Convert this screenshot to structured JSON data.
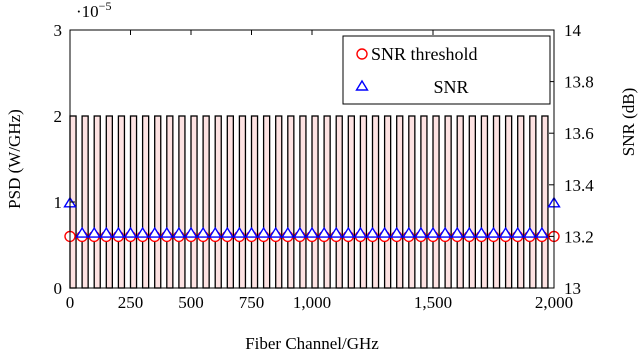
{
  "chart_data": {
    "type": "bar",
    "x_axis": {
      "label": "Fiber Channel/GHz",
      "range": [
        0,
        2000
      ],
      "ticks": [
        0,
        250,
        500,
        750,
        1000,
        1500,
        2000
      ],
      "tick_labels": [
        "0",
        "250",
        "500",
        "750",
        "1,000",
        "1,500",
        "2,000"
      ]
    },
    "y_left": {
      "label": "PSD (W/GHz)",
      "range": [
        0,
        3
      ],
      "ticks": [
        0,
        1,
        2,
        3
      ],
      "tick_labels": [
        "0",
        "1",
        "2",
        "3"
      ],
      "multiplier": "·10",
      "multiplier_exponent": "−5"
    },
    "y_right": {
      "label": "SNR (dB)",
      "range": [
        13,
        14
      ],
      "ticks": [
        13,
        13.2,
        13.4,
        13.6,
        13.8,
        14
      ],
      "tick_labels": [
        "13",
        "13.2",
        "13.4",
        "13.6",
        "13.8",
        "14"
      ]
    },
    "psd_bars": {
      "centers": [
        12.5,
        62.5,
        112.5,
        162.5,
        212.5,
        262.5,
        312.5,
        362.5,
        412.5,
        462.5,
        512.5,
        562.5,
        612.5,
        662.5,
        712.5,
        762.5,
        812.5,
        862.5,
        912.5,
        962.5,
        1012.5,
        1062.5,
        1112.5,
        1162.5,
        1212.5,
        1262.5,
        1312.5,
        1362.5,
        1412.5,
        1462.5,
        1512.5,
        1562.5,
        1612.5,
        1662.5,
        1712.5,
        1762.5,
        1812.5,
        1862.5,
        1912.5,
        1962.5
      ],
      "width": 25,
      "value": 2,
      "fill": "#fde2e2",
      "stroke": "#000000"
    },
    "series": [
      {
        "name": "SNR threshold",
        "marker": "circle",
        "color": "#ff0000",
        "x": [
          0,
          50,
          100,
          150,
          200,
          250,
          300,
          350,
          400,
          450,
          500,
          550,
          600,
          650,
          700,
          750,
          800,
          850,
          900,
          950,
          1000,
          1050,
          1100,
          1150,
          1200,
          1250,
          1300,
          1350,
          1400,
          1450,
          1500,
          1550,
          1600,
          1650,
          1700,
          1750,
          1800,
          1850,
          1900,
          1950,
          2000
        ],
        "values": [
          13.2,
          13.2,
          13.2,
          13.2,
          13.2,
          13.2,
          13.2,
          13.2,
          13.2,
          13.2,
          13.2,
          13.2,
          13.2,
          13.2,
          13.2,
          13.2,
          13.2,
          13.2,
          13.2,
          13.2,
          13.2,
          13.2,
          13.2,
          13.2,
          13.2,
          13.2,
          13.2,
          13.2,
          13.2,
          13.2,
          13.2,
          13.2,
          13.2,
          13.2,
          13.2,
          13.2,
          13.2,
          13.2,
          13.2,
          13.2,
          13.2
        ]
      },
      {
        "name": "SNR",
        "marker": "triangle",
        "color": "#0000ff",
        "x": [
          0,
          50,
          100,
          150,
          200,
          250,
          300,
          350,
          400,
          450,
          500,
          550,
          600,
          650,
          700,
          750,
          800,
          850,
          900,
          950,
          1000,
          1050,
          1100,
          1150,
          1200,
          1250,
          1300,
          1350,
          1400,
          1450,
          1500,
          1550,
          1600,
          1650,
          1700,
          1750,
          1800,
          1850,
          1900,
          1950,
          2000
        ],
        "values": [
          13.33,
          13.213,
          13.213,
          13.213,
          13.213,
          13.213,
          13.213,
          13.213,
          13.213,
          13.213,
          13.213,
          13.213,
          13.213,
          13.213,
          13.213,
          13.213,
          13.213,
          13.213,
          13.213,
          13.213,
          13.213,
          13.213,
          13.213,
          13.213,
          13.213,
          13.213,
          13.213,
          13.213,
          13.213,
          13.213,
          13.213,
          13.213,
          13.213,
          13.213,
          13.213,
          13.213,
          13.213,
          13.213,
          13.213,
          13.213,
          13.33
        ]
      }
    ],
    "legend": {
      "placement": "top-right",
      "entries": [
        "SNR threshold",
        "SNR"
      ]
    },
    "grid": false
  }
}
